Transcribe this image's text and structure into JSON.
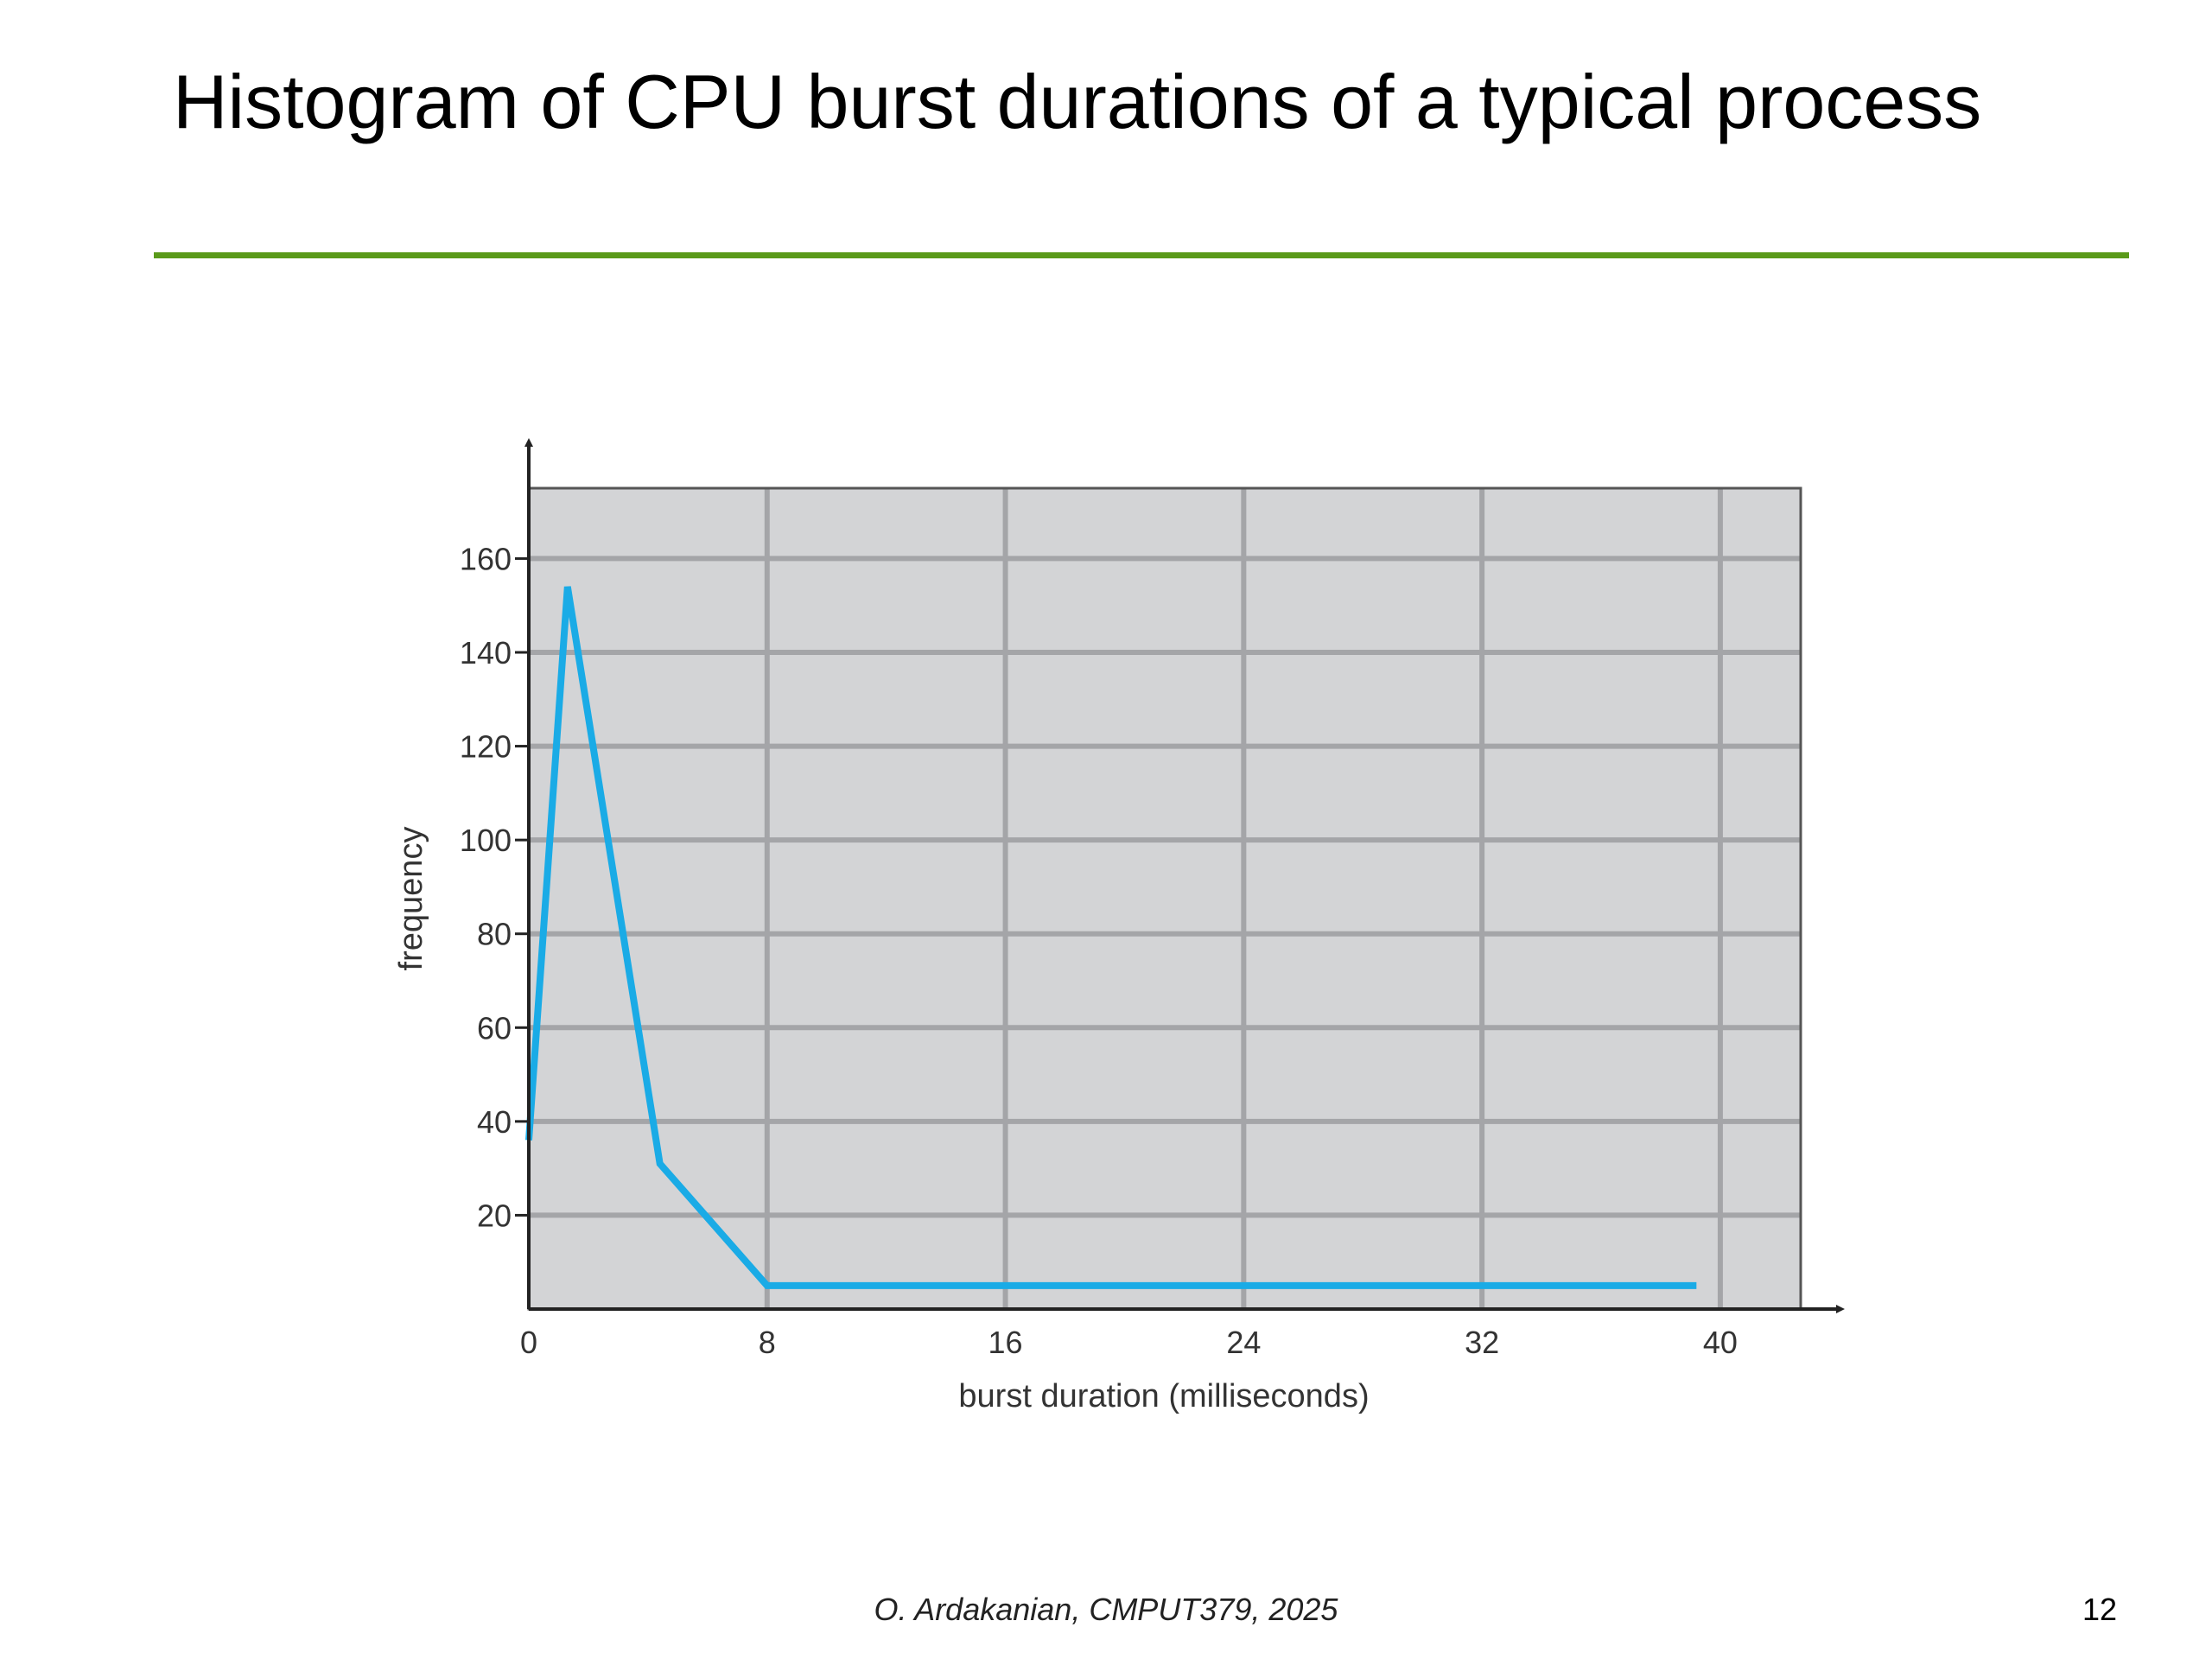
{
  "slide": {
    "title": "Histogram of CPU burst durations of a typical process",
    "accent_color": "#5a9a1a",
    "footer": "O. Ardakanian, CMPUT379, 2025",
    "page_number": "12"
  },
  "chart_data": {
    "type": "line",
    "title": "",
    "xlabel": "burst duration (milliseconds)",
    "ylabel": "frequency",
    "xlim": [
      0,
      42.7
    ],
    "ylim": [
      0,
      175
    ],
    "x_ticks": [
      0,
      8,
      16,
      24,
      32,
      40
    ],
    "y_ticks": [
      20,
      40,
      60,
      80,
      100,
      120,
      140,
      160
    ],
    "grid": true,
    "plot_background": "#d3d4d6",
    "grid_color": "#a4a5a8",
    "series": [
      {
        "color": "#1aabe6",
        "x": [
          0,
          1.3,
          4.4,
          8,
          39.2
        ],
        "y": [
          36,
          154,
          31,
          5,
          5
        ]
      }
    ]
  }
}
